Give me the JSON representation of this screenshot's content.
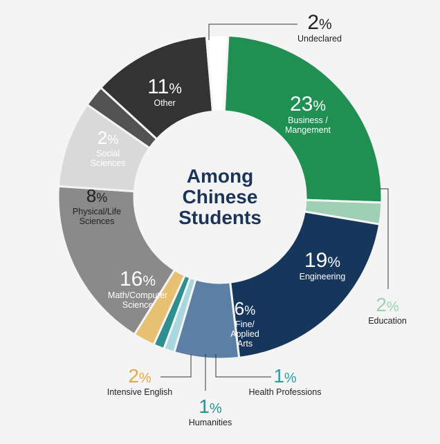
{
  "chart_data": {
    "type": "pie",
    "variant": "donut",
    "title": [
      "Among",
      "Chinese",
      "Students"
    ],
    "unit": "%",
    "slices": [
      {
        "name": "Business / Mangement",
        "label_lines": [
          "Business /",
          "Mangement"
        ],
        "value": 23,
        "color": "#1f8f52",
        "text_color": "#ffffff",
        "callout": false
      },
      {
        "name": "Education",
        "label_lines": [
          "Education"
        ],
        "value": 2,
        "color": "#9fd0b3",
        "text_color": "#9fd0b3",
        "callout": true
      },
      {
        "name": "Engineering",
        "label_lines": [
          "Engineering"
        ],
        "value": 19,
        "color": "#17365c",
        "text_color": "#ffffff",
        "callout": false
      },
      {
        "name": "Fine/ Applied Arts",
        "label_lines": [
          "Fine/",
          "Applied",
          "Arts"
        ],
        "value": 6,
        "color": "#5c7fa6",
        "text_color": "#ffffff",
        "callout": false
      },
      {
        "name": "Health Professions",
        "label_lines": [
          "Health Professions"
        ],
        "value": 1,
        "color": "#a8d7e0",
        "text_color": "#2e9aa3",
        "callout": true
      },
      {
        "name": "Humanities",
        "label_lines": [
          "Humanities"
        ],
        "value": 1,
        "color": "#2e8f8f",
        "text_color": "#2e8f8f",
        "callout": true
      },
      {
        "name": "Intensive English",
        "label_lines": [
          "Intensive English"
        ],
        "value": 2,
        "color": "#e8c072",
        "text_color": "#e0a94a",
        "callout": true
      },
      {
        "name": "Math/Computer Science",
        "label_lines": [
          "Math/Computer",
          "Science"
        ],
        "value": 16,
        "color": "#8a8a8a",
        "text_color": "#ffffff",
        "callout": false
      },
      {
        "name": "Physical/Life Sciences",
        "label_lines": [
          "Physical/Life",
          "Sciences"
        ],
        "value": 8,
        "color": "#d9d9d9",
        "text_color": "#222222",
        "callout": false
      },
      {
        "name": "Social Sciences",
        "label_lines": [
          "Social",
          "Sciences"
        ],
        "value": 2,
        "color": "#525252",
        "text_color": "#ffffff",
        "callout": false
      },
      {
        "name": "Other",
        "label_lines": [
          "Other"
        ],
        "value": 11,
        "color": "#333333",
        "text_color": "#ffffff",
        "callout": false
      },
      {
        "name": "Undeclared",
        "label_lines": [
          "Undeclared"
        ],
        "value": 2,
        "color": "#ffffff",
        "text_color": "#222222",
        "callout": true
      }
    ]
  }
}
